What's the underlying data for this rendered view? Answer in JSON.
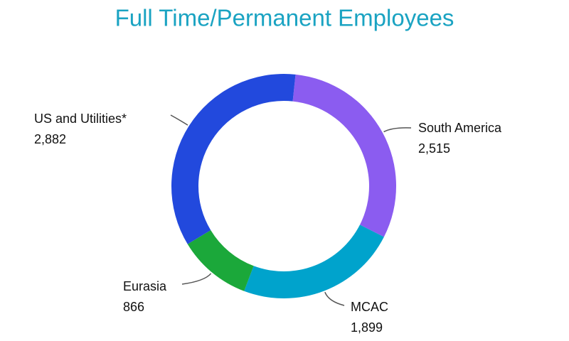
{
  "chart_data": {
    "type": "donut",
    "title": "Full Time/Permanent Employees",
    "categories": [
      "South America",
      "MCAC",
      "Eurasia",
      "US and Utilities*"
    ],
    "values": [
      2515,
      1899,
      866,
      2882
    ],
    "value_labels": [
      "2,515",
      "1,899",
      "866",
      "2,882"
    ],
    "colors": [
      "#8b5cf0",
      "#00a3cc",
      "#1ba83a",
      "#2249dd"
    ]
  }
}
